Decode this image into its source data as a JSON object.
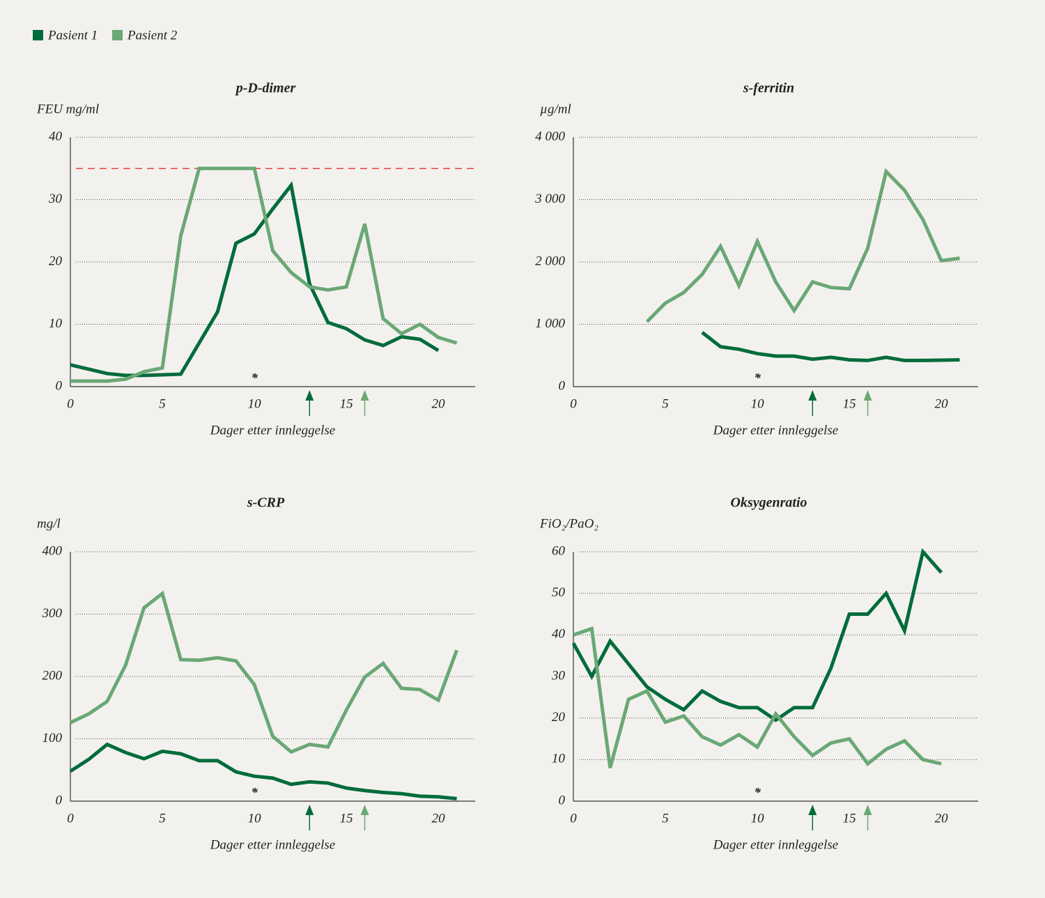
{
  "chart_data": [
    {
      "type": "line",
      "title": "p-D-dimer",
      "ylabel": "FEU mg/ml",
      "xlabel": "Dager etter innleggelse",
      "legend": "top-left",
      "x": [
        0,
        1,
        2,
        3,
        4,
        5,
        6,
        7,
        8,
        9,
        10,
        11,
        12,
        13,
        14,
        15,
        16,
        17,
        18,
        19,
        20,
        21
      ],
      "xlim": [
        0,
        22
      ],
      "xticks": [
        0,
        5,
        10,
        15,
        20
      ],
      "ylim": [
        0,
        40
      ],
      "yticks": [
        0,
        10,
        20,
        30,
        40
      ],
      "grid": true,
      "reference_line": {
        "y": 35,
        "color": "#e8413a"
      },
      "annotation": {
        "text": "*",
        "x": 10,
        "color": "#6aa875"
      },
      "markers": [
        {
          "x": 13,
          "color": "#006c3b"
        },
        {
          "x": 16,
          "color": "#6aa875"
        }
      ],
      "series": [
        {
          "name": "Pasient 1",
          "color": "#006c3b",
          "values": [
            3.5,
            2.8,
            2.1,
            1.8,
            1.8,
            1.9,
            2.0,
            7,
            12,
            23,
            24.5,
            28.5,
            32.3,
            16.5,
            10.3,
            9.3,
            7.5,
            6.6,
            8,
            7.6,
            5.8,
            null
          ]
        },
        {
          "name": "Pasient 2",
          "color": "#6aa875",
          "values": [
            0.9,
            0.9,
            0.9,
            1.2,
            2.4,
            3,
            24.2,
            35,
            35,
            35,
            35,
            21.8,
            18.3,
            16,
            15.5,
            16,
            26.1,
            10.9,
            8.5,
            10,
            7.9,
            7
          ]
        }
      ]
    },
    {
      "type": "line",
      "title": "s-ferritin",
      "ylabel": "µg/ml",
      "xlabel": "Dager etter innleggelse",
      "x": [
        0,
        1,
        2,
        3,
        4,
        5,
        6,
        7,
        8,
        9,
        10,
        11,
        12,
        13,
        14,
        15,
        16,
        17,
        18,
        19,
        20,
        21
      ],
      "xlim": [
        0,
        22
      ],
      "xticks": [
        0,
        5,
        10,
        15,
        20
      ],
      "ylim": [
        0,
        4000
      ],
      "yticks": [
        0,
        {
          "value": 1000,
          "label": "1 000"
        },
        {
          "value": 2000,
          "label": "2 000"
        },
        {
          "value": 3000,
          "label": "3 000"
        },
        {
          "value": 4000,
          "label": "4 000"
        }
      ],
      "grid": true,
      "annotation": {
        "text": "*",
        "x": 10,
        "color": "#6aa875"
      },
      "markers": [
        {
          "x": 13,
          "color": "#006c3b"
        },
        {
          "x": 16,
          "color": "#6aa875"
        }
      ],
      "series": [
        {
          "name": "Pasient 1",
          "color": "#006c3b",
          "values": [
            null,
            null,
            null,
            null,
            null,
            null,
            null,
            870,
            640,
            600,
            530,
            490,
            490,
            440,
            470,
            430,
            420,
            470,
            420,
            420,
            425,
            430
          ]
        },
        {
          "name": "Pasient 2",
          "color": "#6aa875",
          "values": [
            null,
            null,
            null,
            null,
            1040,
            1340,
            1510,
            1800,
            2250,
            1620,
            2330,
            1680,
            1220,
            1680,
            1590,
            1570,
            2220,
            3450,
            3150,
            2680,
            2020,
            2060
          ]
        }
      ]
    },
    {
      "type": "line",
      "title": "s-CRP",
      "ylabel": "mg/l",
      "xlabel": "Dager etter innleggelse",
      "x": [
        0,
        1,
        2,
        3,
        4,
        5,
        6,
        7,
        8,
        9,
        10,
        11,
        12,
        13,
        14,
        15,
        16,
        17,
        18,
        19,
        20,
        21
      ],
      "xlim": [
        0,
        22
      ],
      "xticks": [
        0,
        5,
        10,
        15,
        20
      ],
      "ylim": [
        0,
        400
      ],
      "yticks": [
        0,
        100,
        200,
        300,
        400
      ],
      "grid": true,
      "annotation": {
        "text": "*",
        "x": 10,
        "color": "#6aa875"
      },
      "markers": [
        {
          "x": 13,
          "color": "#006c3b"
        },
        {
          "x": 16,
          "color": "#6aa875"
        }
      ],
      "series": [
        {
          "name": "Pasient 1",
          "color": "#006c3b",
          "values": [
            48,
            67,
            91,
            78,
            68,
            80,
            76,
            65,
            65,
            47,
            40,
            37,
            27,
            31,
            29,
            21,
            17,
            14,
            12,
            8,
            7,
            4
          ]
        },
        {
          "name": "Pasient 2",
          "color": "#6aa875",
          "values": [
            126,
            140,
            160,
            218,
            310,
            333,
            227,
            226,
            230,
            225,
            187,
            104,
            79,
            91,
            87,
            146,
            199,
            221,
            181,
            179,
            162,
            242
          ]
        }
      ]
    },
    {
      "type": "line",
      "title": "Oksygenratio",
      "ylabel": "FiO₂/PaO₂",
      "xlabel": "Dager etter innleggelse",
      "x": [
        0,
        1,
        2,
        3,
        4,
        5,
        6,
        7,
        8,
        9,
        10,
        11,
        12,
        13,
        14,
        15,
        16,
        17,
        18,
        19,
        20,
        21
      ],
      "xlim": [
        0,
        22
      ],
      "xticks": [
        0,
        5,
        10,
        15,
        20
      ],
      "ylim": [
        0,
        60
      ],
      "yticks": [
        0,
        10,
        20,
        30,
        40,
        50,
        60
      ],
      "grid": true,
      "annotation": {
        "text": "*",
        "x": 10,
        "color": "#6aa875"
      },
      "markers": [
        {
          "x": 13,
          "color": "#006c3b"
        },
        {
          "x": 16,
          "color": "#6aa875"
        }
      ],
      "series": [
        {
          "name": "Pasient 1",
          "color": "#006c3b",
          "values": [
            38,
            30,
            38.5,
            33,
            27.5,
            24.5,
            22,
            26.5,
            24,
            22.5,
            22.5,
            19.5,
            22.5,
            22.5,
            32,
            45,
            45,
            50,
            41,
            60,
            55,
            null
          ]
        },
        {
          "name": "Pasient 2",
          "color": "#6aa875",
          "values": [
            40,
            41.5,
            8,
            24.5,
            26.5,
            19,
            20.5,
            15.5,
            13.5,
            16,
            13,
            21,
            15.5,
            11,
            14,
            15,
            9,
            12.5,
            14.5,
            10,
            9,
            null
          ]
        }
      ]
    }
  ]
}
